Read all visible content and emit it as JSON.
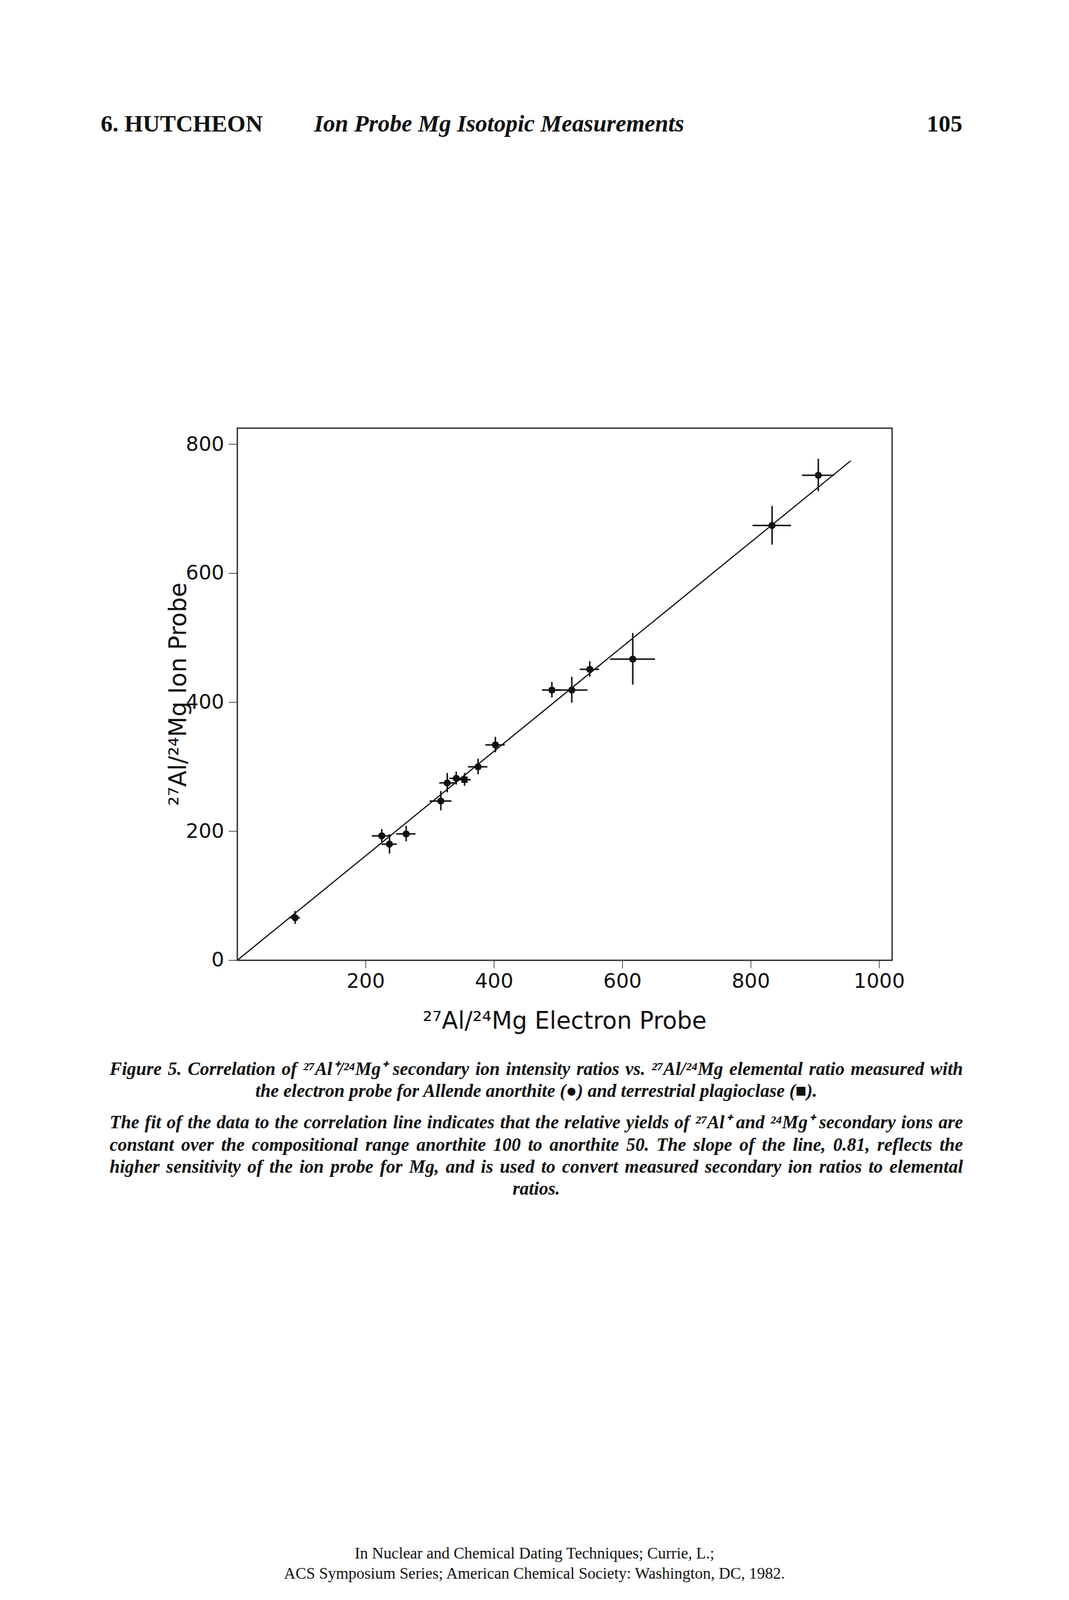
{
  "header": {
    "left": "6. HUTCHEON",
    "title": "Ion Probe Mg Isotopic Measurements",
    "page": "105"
  },
  "chart_data": {
    "type": "scatter",
    "x_label": "²⁷Al/²⁴Mg Electron Probe",
    "y_label": "²⁷Al/²⁴Mg Ion Probe",
    "xlim": [
      0,
      1020
    ],
    "ylim": [
      0,
      825
    ],
    "xticks": [
      200,
      400,
      600,
      800,
      1000
    ],
    "yticks": [
      0,
      200,
      400,
      600,
      800
    ],
    "grid": false,
    "series": [
      {
        "name": "Allende anorthite",
        "marker": "circle",
        "color": "#111111",
        "x": [
          90,
          225,
          237,
          263,
          317,
          327,
          341,
          375,
          402,
          490,
          521,
          549,
          616,
          833,
          905
        ],
        "y": [
          66,
          193,
          180,
          196,
          247,
          275,
          282,
          300,
          334,
          419,
          419,
          451,
          467,
          674,
          752
        ],
        "x_error": [
          8,
          15,
          12,
          15,
          17,
          12,
          10,
          15,
          15,
          15,
          25,
          15,
          35,
          30,
          25
        ],
        "y_error": [
          10,
          10,
          15,
          12,
          15,
          15,
          10,
          12,
          12,
          12,
          20,
          12,
          40,
          30,
          25
        ]
      },
      {
        "name": "terrestrial plagioclase",
        "marker": "square",
        "color": "#111111",
        "x": [
          354
        ],
        "y": [
          280
        ],
        "x_error": [
          10
        ],
        "y_error": [
          10
        ]
      }
    ],
    "fit_line": {
      "x": [
        0,
        955
      ],
      "y": [
        0,
        774
      ],
      "color": "#111111"
    }
  },
  "caption": {
    "title": "Figure 5. Correlation of ²⁷Al⁺/²⁴Mg⁺ secondary ion intensity ratios vs. ²⁷Al/²⁴Mg elemental ratio measured with the electron probe for Allende anorthite (●) and terrestrial plagioclase (■).",
    "text": "The fit of the data to the correlation line indicates that the relative yields of ²⁷Al⁺ and ²⁴Mg⁺ secondary ions are constant over the compositional range anorthite 100 to anorthite 50. The slope of the line, 0.81, reflects the higher sensitivity of the ion probe for Mg, and is used to convert measured secondary ion ratios to elemental ratios."
  },
  "footer": [
    "In Nuclear and Chemical Dating Techniques; Currie, L.;",
    "ACS Symposium Series; American Chemical Society: Washington, DC, 1982."
  ]
}
